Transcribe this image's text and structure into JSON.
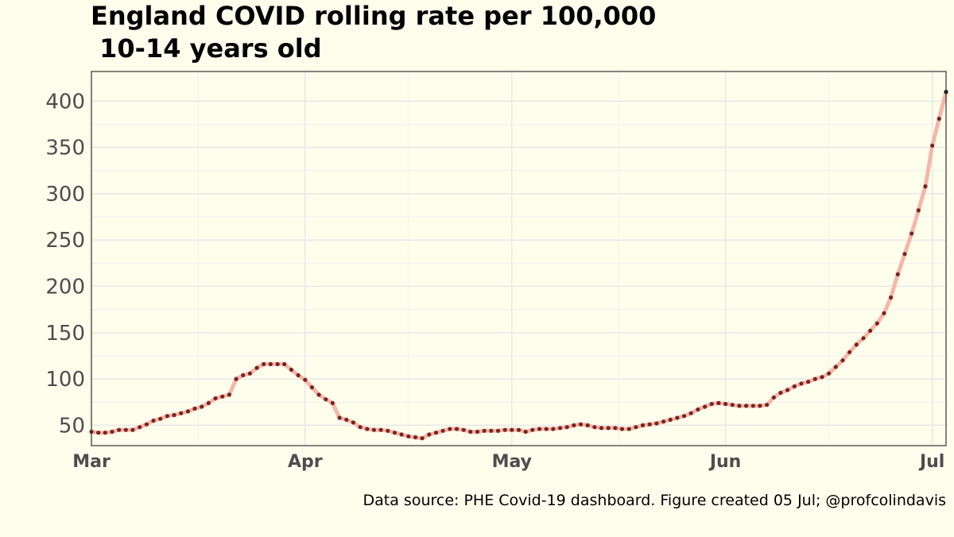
{
  "chart_data": {
    "type": "line",
    "title": "England  COVID rolling rate per 100,000",
    "subtitle": " 10-14 years old",
    "caption": "Data source: PHE Covid-19 dashboard. Figure created 05 Jul; @profcolindavis",
    "xlabel": "",
    "ylabel": "",
    "x_start": "2021-03-01",
    "x_end": "2021-07-03",
    "xlim": [
      "2021-03-01",
      "2021-07-03"
    ],
    "ylim": [
      28,
      432
    ],
    "x_ticks": [
      {
        "date": "2021-03-01",
        "label": "Mar"
      },
      {
        "date": "2021-04-01",
        "label": "Apr"
      },
      {
        "date": "2021-05-01",
        "label": "May"
      },
      {
        "date": "2021-06-01",
        "label": "Jun"
      },
      {
        "date": "2021-07-01",
        "label": "Jul"
      }
    ],
    "y_ticks": [
      50,
      100,
      150,
      200,
      250,
      300,
      350,
      400
    ],
    "grid": true,
    "colors": {
      "line": "#f4b7a8",
      "points": "#7a2424",
      "background": "#fefeed",
      "panel_border": "#333333"
    },
    "series": [
      {
        "start_date": "2021-03-01",
        "values": [
          43,
          42,
          42,
          43,
          45,
          45,
          45,
          48,
          51,
          55,
          57,
          60,
          61,
          63,
          65,
          68,
          70,
          74,
          79,
          81,
          83,
          100,
          104,
          106,
          112,
          116,
          116,
          116,
          116,
          110,
          104,
          99,
          91,
          83,
          78,
          74,
          58,
          56,
          53,
          48,
          46,
          45,
          45,
          44,
          42,
          40,
          38,
          37,
          36,
          40,
          42,
          44,
          46,
          46,
          45,
          43,
          43,
          44,
          44,
          44,
          45,
          45,
          45,
          43,
          45,
          46,
          46,
          46,
          47,
          48,
          50,
          51,
          50,
          48,
          47,
          47,
          47,
          46,
          46,
          48,
          50,
          51,
          52,
          54,
          56,
          58,
          60,
          63,
          67,
          70,
          73,
          74,
          73,
          72,
          71,
          71,
          71,
          71,
          72,
          80,
          85,
          88,
          92,
          95,
          97,
          100,
          102,
          106,
          113,
          120,
          129,
          137,
          144,
          152,
          160,
          171,
          188,
          213,
          235,
          257,
          282,
          308,
          352,
          381,
          410
        ]
      }
    ]
  }
}
